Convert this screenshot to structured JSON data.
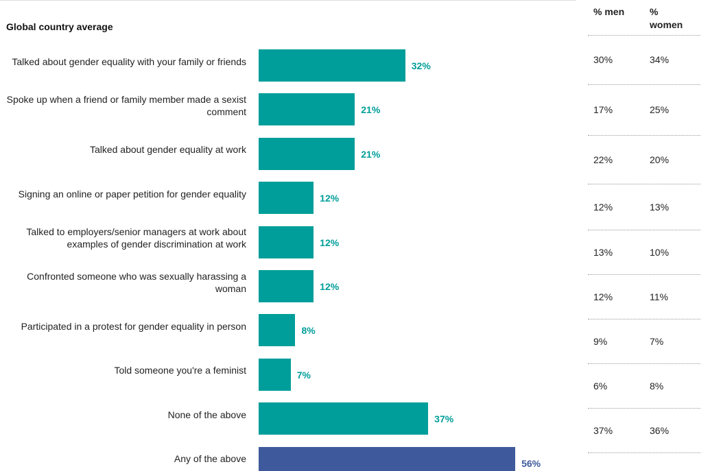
{
  "chart_data": {
    "type": "bar",
    "title": "Global country average",
    "categories": [
      "Talked about gender equality with your family or friends",
      "Spoke up when a friend or family member made a sexist comment",
      "Talked about gender equality at work",
      "Signing an online or paper petition for gender equality",
      "Talked to employers/senior managers at work about examples of gender discrimination at work",
      "Confronted someone who was sexually harassing a woman",
      "Participated in a protest for gender equality in person",
      "Told someone you're a feminist",
      "None of the above",
      "Any of the above"
    ],
    "values": [
      32,
      21,
      21,
      12,
      12,
      12,
      8,
      7,
      37,
      56
    ],
    "value_labels": [
      "32%",
      "21%",
      "21%",
      "12%",
      "12%",
      "12%",
      "8%",
      "7%",
      "37%",
      "56%"
    ],
    "colors": [
      "#009e9a",
      "#009e9a",
      "#009e9a",
      "#009e9a",
      "#009e9a",
      "#009e9a",
      "#009e9a",
      "#009e9a",
      "#009e9a",
      "#3f5a9c"
    ]
  },
  "table": {
    "headers": [
      "% men",
      "% women"
    ],
    "rows": [
      [
        "30%",
        "34%"
      ],
      [
        "17%",
        "25%"
      ],
      [
        "22%",
        "20%"
      ],
      [
        "12%",
        "13%"
      ],
      [
        "13%",
        "10%"
      ],
      [
        "12%",
        "11%"
      ],
      [
        "9%",
        "7%"
      ],
      [
        "6%",
        "8%"
      ],
      [
        "37%",
        "36%"
      ]
    ]
  }
}
